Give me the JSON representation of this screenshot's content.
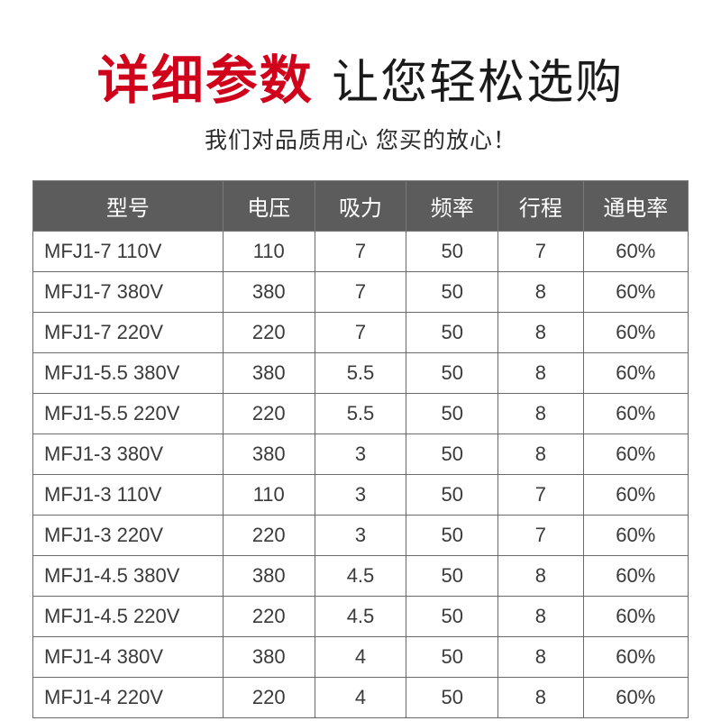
{
  "heading": {
    "red": "详细参数",
    "black": "让您轻松选购"
  },
  "subheading": "我们对品质用心  您买的放心！",
  "table": {
    "columns": [
      "型号",
      "电压",
      "吸力",
      "频率",
      "行程",
      "通电率"
    ],
    "rows": [
      [
        "MFJ1-7 110V",
        "110",
        "7",
        "50",
        "7",
        "60%"
      ],
      [
        "MFJ1-7 380V",
        "380",
        "7",
        "50",
        "8",
        "60%"
      ],
      [
        "MFJ1-7 220V",
        "220",
        "7",
        "50",
        "8",
        "60%"
      ],
      [
        "MFJ1-5.5 380V",
        "380",
        "5.5",
        "50",
        "8",
        "60%"
      ],
      [
        "MFJ1-5.5 220V",
        "220",
        "5.5",
        "50",
        "8",
        "60%"
      ],
      [
        "MFJ1-3 380V",
        "380",
        "3",
        "50",
        "8",
        "60%"
      ],
      [
        "MFJ1-3 110V",
        "110",
        "3",
        "50",
        "7",
        "60%"
      ],
      [
        "MFJ1-3 220V",
        "220",
        "3",
        "50",
        "7",
        "60%"
      ],
      [
        "MFJ1-4.5 380V",
        "380",
        "4.5",
        "50",
        "8",
        "60%"
      ],
      [
        "MFJ1-4.5 220V",
        "220",
        "4.5",
        "50",
        "8",
        "60%"
      ],
      [
        "MFJ1-4 380V",
        "380",
        "4",
        "50",
        "8",
        "60%"
      ],
      [
        "MFJ1-4 220V",
        "220",
        "4",
        "50",
        "8",
        "60%"
      ]
    ],
    "header_bg": "#5c5c5c",
    "header_fg": "#ffffff",
    "cell_bg": "#ffffff",
    "cell_fg": "#3a3a3a",
    "border_color": "#6a6a6a",
    "col_widths_pct": [
      29,
      14,
      14,
      14,
      13,
      16
    ],
    "header_fontsize": 24,
    "cell_fontsize": 22
  },
  "colors": {
    "heading_red": "#d0021b",
    "heading_black": "#1a1a1a",
    "subheading": "#2a2a2a",
    "background": "#ffffff"
  },
  "typography": {
    "heading_red_size": 58,
    "heading_black_size": 52,
    "subheading_size": 25
  }
}
